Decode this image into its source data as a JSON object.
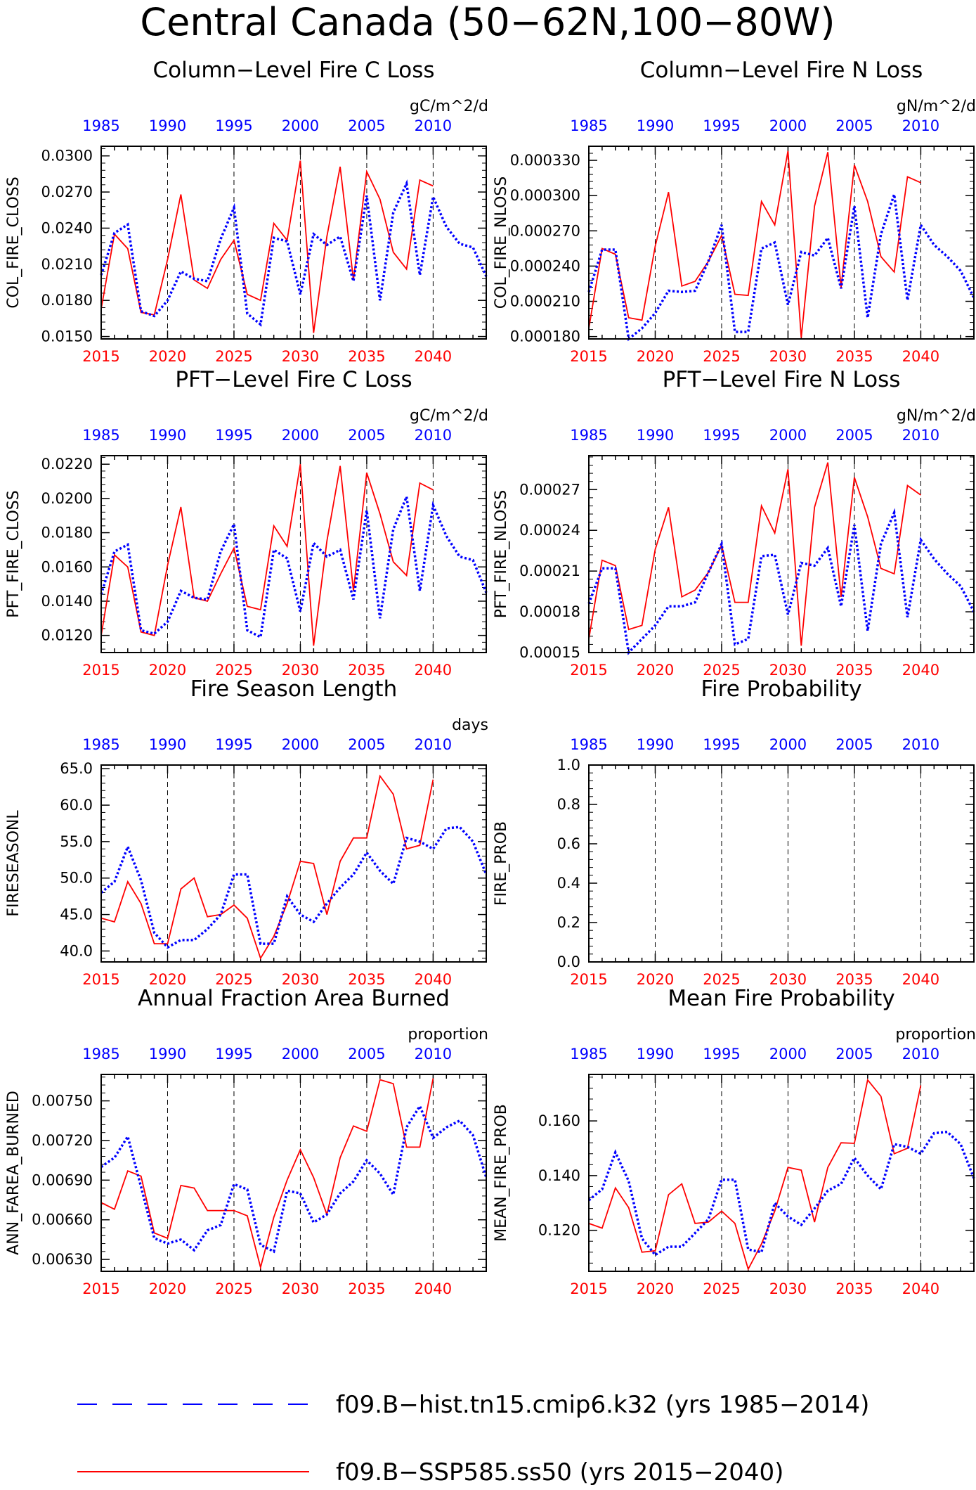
{
  "page": {
    "title": "Central Canada (50−62N,100−80W)",
    "colors": {
      "ssp": "#ff0000",
      "hist": "#0000ff",
      "frame": "#000000"
    }
  },
  "legend": {
    "hist_label": "f09.B−hist.tn15.cmip6.k32 (yrs 1985−2014)",
    "ssp_label": "f09.B−SSP585.ss50 (yrs 2015−2040)"
  },
  "chart_data": [
    {
      "type": "line",
      "title": "Column−Level Fire C Loss",
      "units": "gC/m^2/d",
      "ylabel": "COL_FIRE_CLOSS",
      "ylim": [
        0.0148,
        0.0308
      ],
      "yticks": [
        0.015,
        0.018,
        0.021,
        0.024,
        0.027,
        0.03
      ],
      "ytick_labels": [
        "0.0150",
        "0.0180",
        "0.0210",
        "0.0240",
        "0.0270",
        "0.0300"
      ],
      "x_bottom": {
        "label_years": [
          "2015",
          "2020",
          "2025",
          "2030",
          "2035",
          "2040"
        ],
        "range": [
          2015,
          2044
        ]
      },
      "x_top": {
        "label_years": [
          "1985",
          "1990",
          "1995",
          "2000",
          "2005",
          "2010"
        ],
        "range": [
          1985,
          2014
        ]
      },
      "series": [
        {
          "name": "f09.B−SSP585.ss50",
          "color": "#ff0000",
          "style": "solid",
          "x_start": 2015,
          "values": [
            0.0173,
            0.0235,
            0.0223,
            0.017,
            0.0168,
            0.0214,
            0.0268,
            0.0197,
            0.019,
            0.0214,
            0.023,
            0.0185,
            0.018,
            0.0244,
            0.023,
            0.0296,
            0.0153,
            0.0233,
            0.0291,
            0.0197,
            0.0287,
            0.0264,
            0.022,
            0.0206,
            0.028,
            0.0275
          ]
        },
        {
          "name": "f09.B−hist.tn15.cmip6.k32",
          "color": "#0000ff",
          "style": "dotted",
          "x_start": 1985,
          "values": [
            0.0201,
            0.0236,
            0.0243,
            0.0171,
            0.0167,
            0.018,
            0.0204,
            0.0198,
            0.0196,
            0.0231,
            0.0257,
            0.0169,
            0.016,
            0.0232,
            0.0229,
            0.0185,
            0.0235,
            0.0226,
            0.0233,
            0.0196,
            0.0267,
            0.018,
            0.0253,
            0.0277,
            0.0201,
            0.0266,
            0.0241,
            0.0227,
            0.0224,
            0.02
          ]
        }
      ]
    },
    {
      "type": "line",
      "title": "Column−Level Fire N Loss",
      "units": "gN/m^2/d",
      "ylabel": "COL_FIRE_NLOSS",
      "ylim": [
        0.000178,
        0.000342
      ],
      "yticks": [
        0.00018,
        0.00021,
        0.00024,
        0.00027,
        0.0003,
        0.00033
      ],
      "ytick_labels": [
        "0.000180",
        "0.000210",
        "0.000240",
        "0.000270",
        "0.000300",
        "0.000330"
      ],
      "x_bottom": {
        "label_years": [
          "2015",
          "2020",
          "2025",
          "2030",
          "2035",
          "2040"
        ],
        "range": [
          2015,
          2044
        ]
      },
      "x_top": {
        "label_years": [
          "1985",
          "1990",
          "1995",
          "2000",
          "2005",
          "2010"
        ],
        "range": [
          1985,
          2014
        ]
      },
      "series": [
        {
          "name": "f09.B−SSP585.ss50",
          "color": "#ff0000",
          "style": "solid",
          "x_start": 2015,
          "values": [
            0.000187,
            0.000255,
            0.00025,
            0.000196,
            0.000194,
            0.000257,
            0.000303,
            0.000223,
            0.000227,
            0.000244,
            0.000266,
            0.000216,
            0.000215,
            0.000295,
            0.000275,
            0.000338,
            0.000179,
            0.000291,
            0.000337,
            0.000222,
            0.000326,
            0.000295,
            0.000248,
            0.000235,
            0.000316,
            0.000311
          ]
        },
        {
          "name": "f09.B−hist.tn15.cmip6.k32",
          "color": "#0000ff",
          "style": "dotted",
          "x_start": 1985,
          "values": [
            0.000218,
            0.000254,
            0.000254,
            0.000178,
            0.000187,
            0.0002,
            0.000219,
            0.000218,
            0.000219,
            0.000244,
            0.000275,
            0.000184,
            0.000184,
            0.000255,
            0.00026,
            0.000207,
            0.000252,
            0.000249,
            0.000264,
            0.000221,
            0.000291,
            0.000196,
            0.000267,
            0.000301,
            0.000211,
            0.000275,
            0.000258,
            0.000248,
            0.000236,
            0.000213
          ]
        }
      ]
    },
    {
      "type": "line",
      "title": "PFT−Level Fire C Loss",
      "units": "gC/m^2/d",
      "ylabel": "PFT_FIRE_CLOSS",
      "ylim": [
        0.011,
        0.0225
      ],
      "yticks": [
        0.012,
        0.014,
        0.016,
        0.018,
        0.02,
        0.022
      ],
      "ytick_labels": [
        "0.0120",
        "0.0140",
        "0.0160",
        "0.0180",
        "0.0200",
        "0.0220"
      ],
      "x_bottom": {
        "label_years": [
          "2015",
          "2020",
          "2025",
          "2030",
          "2035",
          "2040"
        ],
        "range": [
          2015,
          2044
        ]
      },
      "x_top": {
        "label_years": [
          "1985",
          "1990",
          "1995",
          "2000",
          "2005",
          "2010"
        ],
        "range": [
          1985,
          2014
        ]
      },
      "series": [
        {
          "name": "f09.B−SSP585.ss50",
          "color": "#ff0000",
          "style": "solid",
          "x_start": 2015,
          "values": [
            0.012,
            0.0167,
            0.016,
            0.0122,
            0.012,
            0.0161,
            0.0195,
            0.0142,
            0.014,
            0.0156,
            0.0171,
            0.0137,
            0.0135,
            0.0184,
            0.0172,
            0.022,
            0.0114,
            0.0175,
            0.0219,
            0.0146,
            0.0215,
            0.0191,
            0.0163,
            0.0155,
            0.0209,
            0.0205
          ]
        },
        {
          "name": "f09.B−hist.tn15.cmip6.k32",
          "color": "#0000ff",
          "style": "dotted",
          "x_start": 1985,
          "values": [
            0.0144,
            0.0169,
            0.0173,
            0.0123,
            0.0121,
            0.0128,
            0.0146,
            0.0142,
            0.0141,
            0.0169,
            0.0185,
            0.0123,
            0.0119,
            0.017,
            0.0165,
            0.0134,
            0.0174,
            0.0166,
            0.017,
            0.0141,
            0.0193,
            0.013,
            0.0182,
            0.0201,
            0.0146,
            0.0196,
            0.0178,
            0.0166,
            0.0164,
            0.0145
          ]
        }
      ]
    },
    {
      "type": "line",
      "title": "PFT−Level Fire N Loss",
      "units": "gN/m^2/d",
      "ylabel": "PFT_FIRE_NLOSS",
      "ylim": [
        0.00015,
        0.000295
      ],
      "yticks": [
        0.00015,
        0.00018,
        0.00021,
        0.00024,
        0.00027
      ],
      "ytick_labels": [
        "0.00015",
        "0.00018",
        "0.00021",
        "0.00024",
        "0.00027"
      ],
      "x_bottom": {
        "label_years": [
          "2015",
          "2020",
          "2025",
          "2030",
          "2035",
          "2040"
        ],
        "range": [
          2015,
          2044
        ]
      },
      "x_top": {
        "label_years": [
          "1985",
          "1990",
          "1995",
          "2000",
          "2005",
          "2010"
        ],
        "range": [
          1985,
          2014
        ]
      },
      "series": [
        {
          "name": "f09.B−SSP585.ss50",
          "color": "#ff0000",
          "style": "solid",
          "x_start": 2015,
          "values": [
            0.00016,
            0.000218,
            0.000214,
            0.000167,
            0.00017,
            0.000226,
            0.000257,
            0.000191,
            0.000196,
            0.000209,
            0.000229,
            0.000187,
            0.000187,
            0.000258,
            0.000238,
            0.000285,
            0.000155,
            0.000257,
            0.00029,
            0.000191,
            0.000279,
            0.00025,
            0.000212,
            0.000208,
            0.000273,
            0.000266
          ]
        },
        {
          "name": "f09.B−hist.tn15.cmip6.k32",
          "color": "#0000ff",
          "style": "dotted",
          "x_start": 1985,
          "values": [
            0.000186,
            0.000212,
            0.000212,
            0.00015,
            0.00016,
            0.00017,
            0.000184,
            0.000184,
            0.000187,
            0.000209,
            0.00023,
            0.000156,
            0.00016,
            0.000221,
            0.000222,
            0.000178,
            0.000216,
            0.000214,
            0.000227,
            0.000184,
            0.000244,
            0.000166,
            0.00023,
            0.000253,
            0.000176,
            0.000233,
            0.000219,
            0.000208,
            0.000199,
            0.00018
          ]
        }
      ]
    },
    {
      "type": "line",
      "title": "Fire Season Length",
      "units": "days",
      "ylabel": "FIRESEASONL",
      "ylim": [
        38.5,
        65.5
      ],
      "yticks": [
        40,
        45,
        50,
        55,
        60,
        65
      ],
      "ytick_labels": [
        "40.0",
        "45.0",
        "50.0",
        "55.0",
        "60.0",
        "65.0"
      ],
      "x_bottom": {
        "label_years": [
          "2015",
          "2020",
          "2025",
          "2030",
          "2035",
          "2040"
        ],
        "range": [
          2015,
          2044
        ]
      },
      "x_top": {
        "label_years": [
          "1985",
          "1990",
          "1995",
          "2000",
          "2005",
          "2010"
        ],
        "range": [
          1985,
          2014
        ]
      },
      "series": [
        {
          "name": "f09.B−SSP585.ss50",
          "color": "#ff0000",
          "style": "solid",
          "x_start": 2015,
          "values": [
            44.5,
            44.0,
            49.5,
            46.5,
            41.0,
            41.0,
            48.5,
            50.0,
            44.7,
            45.0,
            46.3,
            44.5,
            39.0,
            42.0,
            46.5,
            52.3,
            52.0,
            45.0,
            52.3,
            55.5,
            55.5,
            64.0,
            61.5,
            54.0,
            54.5,
            63.5
          ]
        },
        {
          "name": "f09.B−hist.tn15.cmip6.k32",
          "color": "#0000ff",
          "style": "dotted",
          "x_start": 1985,
          "values": [
            48.0,
            49.5,
            54.3,
            49.7,
            42.5,
            40.5,
            41.5,
            41.5,
            43.0,
            45.0,
            50.5,
            50.5,
            41.0,
            41.0,
            47.5,
            45.0,
            44.0,
            46.5,
            48.7,
            50.5,
            53.5,
            51.0,
            49.2,
            55.5,
            55.0,
            54.0,
            56.8,
            57.0,
            55.0,
            50.5
          ]
        }
      ]
    },
    {
      "type": "line",
      "title": "Fire Probability",
      "units": "",
      "ylabel": "FIRE_PROB",
      "ylim": [
        0.0,
        1.0
      ],
      "yticks": [
        0.0,
        0.2,
        0.4,
        0.6,
        0.8,
        1.0
      ],
      "ytick_labels": [
        "0.0",
        "0.2",
        "0.4",
        "0.6",
        "0.8",
        "1.0"
      ],
      "x_bottom": {
        "label_years": [
          "2015",
          "2020",
          "2025",
          "2030",
          "2035",
          "2040"
        ],
        "range": [
          2015,
          2044
        ]
      },
      "x_top": {
        "label_years": [
          "1985",
          "1990",
          "1995",
          "2000",
          "2005",
          "2010"
        ],
        "range": [
          1985,
          2014
        ]
      },
      "series": []
    },
    {
      "type": "line",
      "title": "Annual Fraction Area Burned",
      "units": "proportion",
      "ylabel": "ANN_FAREA_BURNED",
      "ylim": [
        0.00621,
        0.0077
      ],
      "yticks": [
        0.0063,
        0.0066,
        0.0069,
        0.0072,
        0.0075
      ],
      "ytick_labels": [
        "0.00630",
        "0.00660",
        "0.00690",
        "0.00720",
        "0.00750"
      ],
      "x_bottom": {
        "label_years": [
          "2015",
          "2020",
          "2025",
          "2030",
          "2035",
          "2040"
        ],
        "range": [
          2015,
          2044
        ]
      },
      "x_top": {
        "label_years": [
          "1985",
          "1990",
          "1995",
          "2000",
          "2005",
          "2010"
        ],
        "range": [
          1985,
          2014
        ]
      },
      "series": [
        {
          "name": "f09.B−SSP585.ss50",
          "color": "#ff0000",
          "style": "solid",
          "x_start": 2015,
          "values": [
            0.00673,
            0.00668,
            0.00697,
            0.00693,
            0.0065,
            0.00646,
            0.00686,
            0.00684,
            0.00667,
            0.00667,
            0.00667,
            0.00663,
            0.00624,
            0.00662,
            0.0069,
            0.00713,
            0.00692,
            0.00664,
            0.00707,
            0.00731,
            0.00727,
            0.00766,
            0.00763,
            0.00715,
            0.00715,
            0.00767
          ]
        },
        {
          "name": "f09.B−hist.tn15.cmip6.k32",
          "color": "#0000ff",
          "style": "dotted",
          "x_start": 1985,
          "values": [
            0.007,
            0.00707,
            0.00723,
            0.00685,
            0.00646,
            0.00642,
            0.00645,
            0.00637,
            0.00652,
            0.00656,
            0.00687,
            0.00683,
            0.00641,
            0.00636,
            0.00682,
            0.0068,
            0.00658,
            0.00664,
            0.0068,
            0.00689,
            0.00705,
            0.00695,
            0.00679,
            0.0073,
            0.00746,
            0.00722,
            0.0073,
            0.00735,
            0.00724,
            0.00692
          ]
        }
      ]
    },
    {
      "type": "line",
      "title": "Mean Fire Probability",
      "units": "proportion",
      "ylabel": "MEAN_FIRE_PROB",
      "ylim": [
        0.105,
        0.177
      ],
      "yticks": [
        0.12,
        0.14,
        0.16
      ],
      "ytick_labels": [
        "0.120",
        "0.140",
        "0.160"
      ],
      "x_bottom": {
        "label_years": [
          "2015",
          "2020",
          "2025",
          "2030",
          "2035",
          "2040"
        ],
        "range": [
          2015,
          2044
        ]
      },
      "x_top": {
        "label_years": [
          "1985",
          "1990",
          "1995",
          "2000",
          "2005",
          "2010"
        ],
        "range": [
          1985,
          2014
        ]
      },
      "series": [
        {
          "name": "f09.B−SSP585.ss50",
          "color": "#ff0000",
          "style": "solid",
          "x_start": 2015,
          "values": [
            0.1225,
            0.1208,
            0.1355,
            0.1283,
            0.112,
            0.1125,
            0.133,
            0.137,
            0.1225,
            0.123,
            0.127,
            0.1225,
            0.1058,
            0.115,
            0.127,
            0.143,
            0.142,
            0.123,
            0.143,
            0.152,
            0.1518,
            0.175,
            0.169,
            0.148,
            0.15,
            0.173
          ]
        },
        {
          "name": "f09.B−hist.tn15.cmip6.k32",
          "color": "#0000ff",
          "style": "dotted",
          "x_start": 1985,
          "values": [
            0.131,
            0.135,
            0.1485,
            0.138,
            0.117,
            0.111,
            0.114,
            0.114,
            0.119,
            0.124,
            0.1385,
            0.1385,
            0.113,
            0.112,
            0.13,
            0.125,
            0.122,
            0.128,
            0.1345,
            0.137,
            0.1465,
            0.14,
            0.135,
            0.1515,
            0.1505,
            0.148,
            0.1555,
            0.156,
            0.1515,
            0.139
          ]
        }
      ]
    }
  ]
}
